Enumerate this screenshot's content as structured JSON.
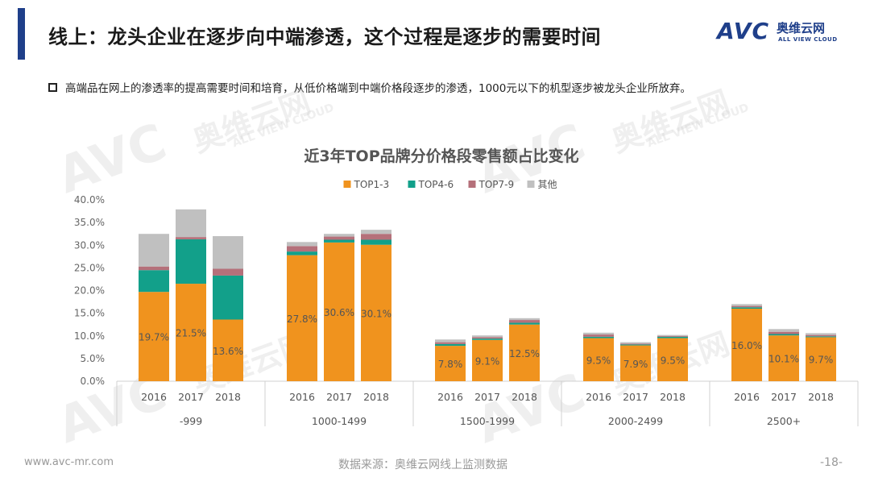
{
  "slide": {
    "title": "线上：龙头企业在逐步向中端渗透，这个过程是逐步的需要时间",
    "bullet": "高端品在网上的渗透率的提高需要时间和培育，从低价格端到中端价格段逐步的渗透，1000元以下的机型逐步被龙头企业所放弃。",
    "logo": {
      "brand": "AVC",
      "cn": "奥维云网",
      "en": "ALL VIEW CLOUD"
    },
    "watermark": {
      "brand": "AVC",
      "cn": "奥维云网",
      "en": "ALL VIEW CLOUD"
    },
    "footer": {
      "website": "www.avc-mr.com",
      "source": "数据来源：奥维云网线上监测数据",
      "page": "-18-"
    },
    "colors": {
      "accent": "#1f3f8a"
    }
  },
  "chart_data": {
    "type": "bar",
    "stacked": true,
    "title": "近3年TOP品牌分价格段零售额占比变化",
    "legend_position": "top",
    "ylim": [
      0,
      40
    ],
    "y_ticks": [
      "0.0%",
      "5.0%",
      "10.0%",
      "15.0%",
      "20.0%",
      "25.0%",
      "30.0%",
      "35.0%",
      "40.0%"
    ],
    "groups": [
      {
        "label": "-999",
        "years": [
          "2016",
          "2017",
          "2018"
        ]
      },
      {
        "label": "1000-1499",
        "years": [
          "2016",
          "2017",
          "2018"
        ]
      },
      {
        "label": "1500-1999",
        "years": [
          "2016",
          "2017",
          "2018"
        ]
      },
      {
        "label": "2000-2499",
        "years": [
          "2016",
          "2017",
          "2018"
        ]
      },
      {
        "label": "2500+",
        "years": [
          "2016",
          "2017",
          "2018"
        ]
      }
    ],
    "series": [
      {
        "name": "TOP1-3",
        "color": "#f0931e",
        "show_labels": true,
        "values": [
          19.7,
          21.5,
          13.6,
          27.8,
          30.6,
          30.1,
          7.8,
          9.1,
          12.5,
          9.5,
          7.9,
          9.5,
          16.0,
          10.1,
          9.7
        ],
        "labels": [
          "19.7%",
          "21.5%",
          "13.6%",
          "27.8%",
          "30.6%",
          "30.1%",
          "7.8%",
          "9.1%",
          "12.5%",
          "9.5%",
          "7.9%",
          "9.5%",
          "16.0%",
          "10.1%",
          "9.7%"
        ]
      },
      {
        "name": "TOP4-6",
        "color": "#12a08a",
        "values": [
          4.8,
          9.8,
          9.7,
          0.8,
          0.6,
          1.1,
          0.4,
          0.3,
          0.4,
          0.3,
          0.2,
          0.3,
          0.3,
          0.3,
          0.2
        ]
      },
      {
        "name": "TOP7-9",
        "color": "#b5707a",
        "values": [
          0.8,
          0.5,
          1.5,
          1.2,
          0.7,
          1.3,
          0.4,
          0.3,
          0.6,
          0.5,
          0.2,
          0.2,
          0.3,
          0.5,
          0.3
        ]
      },
      {
        "name": "其他",
        "color": "#c0c0c0",
        "values": [
          7.2,
          6.1,
          7.2,
          0.9,
          0.6,
          0.9,
          0.6,
          0.4,
          0.4,
          0.4,
          0.3,
          0.2,
          0.4,
          0.6,
          0.4
        ]
      }
    ]
  }
}
